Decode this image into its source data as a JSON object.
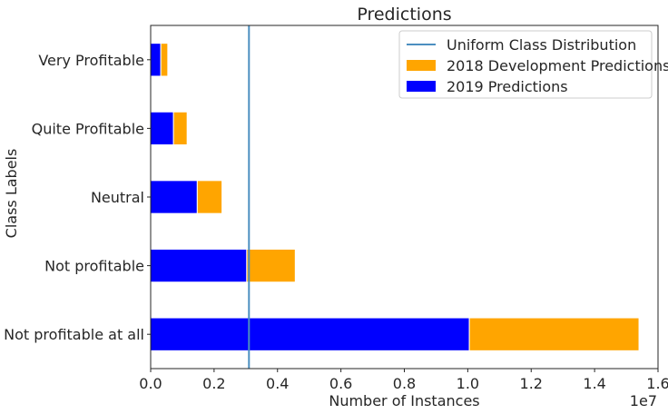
{
  "chart_data": {
    "type": "bar",
    "orientation": "horizontal",
    "stacked": true,
    "title": "Predictions",
    "xlabel": "Number of Instances",
    "ylabel": "Class Labels",
    "x_offset_label": "1e7",
    "xlim": [
      0,
      1.6
    ],
    "x_ticks": [
      0.0,
      0.2,
      0.4,
      0.6,
      0.8,
      1.0,
      1.2,
      1.4,
      1.6
    ],
    "x_tick_labels": [
      "0.0",
      "0.2",
      "0.4",
      "0.6",
      "0.8",
      "1.0",
      "1.2",
      "1.4",
      "1.6"
    ],
    "categories": [
      "Not profitable at all",
      "Not profitable",
      "Neutral",
      "Quite Profitable",
      "Very Profitable"
    ],
    "series": [
      {
        "name": "2019 Predictions",
        "color": "#0000ff",
        "values": [
          1.005,
          0.303,
          0.147,
          0.072,
          0.032
        ]
      },
      {
        "name": "2018 Development Predictions",
        "color": "#ffa500",
        "values": [
          0.535,
          0.153,
          0.078,
          0.043,
          0.022
        ]
      }
    ],
    "reference_line": {
      "name": "Uniform Class Distribution",
      "value": 0.31,
      "color": "#4c8fc0"
    },
    "legend": {
      "placement": "top-right",
      "entries": [
        "Uniform Class Distribution",
        "2018 Development Predictions",
        "2019 Predictions"
      ]
    },
    "grid": false
  }
}
